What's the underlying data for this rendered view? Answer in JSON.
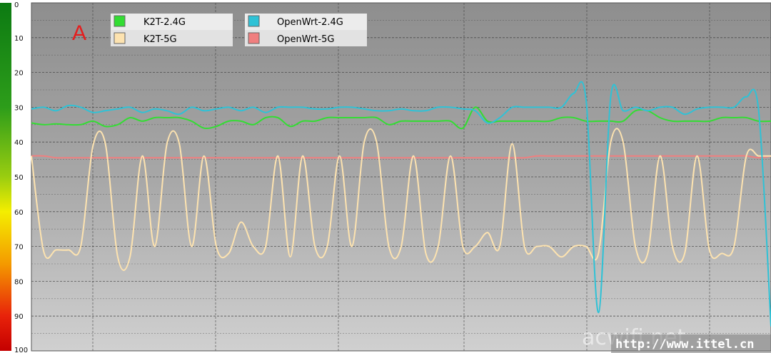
{
  "panel_label": "A",
  "watermark": "acwifi.net",
  "source_url": "http://www.ittel.cn",
  "colors": {
    "K2T-2.4G": "#33dd33",
    "K2T-5G": "#fde3b0",
    "OpenWrt-2.4G": "#2fc2d6",
    "OpenWrt-5G": "#f07f7f",
    "panel_label": "#e41e1e"
  },
  "chart_data": {
    "type": "line",
    "title": "",
    "xlabel": "",
    "ylabel": "",
    "ylim": [
      0,
      100
    ],
    "y_axis_inverted": true,
    "y_ticks": [
      "0",
      "10",
      "20",
      "30",
      "40",
      "50",
      "60",
      "70",
      "80",
      "90",
      "100"
    ],
    "grid": true,
    "legend_position": "top-left",
    "background": "gray gradient, dark at top to light at bottom",
    "color_scale": "vertical bar at left: green at 0, yellow at 60, red at 100",
    "x": [
      0,
      4,
      8,
      12,
      16,
      20,
      24,
      28,
      32,
      36,
      40,
      44,
      48,
      52,
      56,
      60,
      64,
      68,
      72,
      76,
      80,
      84,
      88,
      92,
      96,
      100,
      104,
      108,
      112,
      116,
      120,
      124,
      128,
      132,
      136,
      140,
      144,
      148,
      152,
      156,
      160,
      164,
      168,
      172,
      176,
      180,
      184,
      188,
      192,
      196,
      200,
      204,
      208,
      212,
      216,
      220,
      224,
      228,
      232,
      236,
      240
    ],
    "series": [
      {
        "name": "K2T-2.4G",
        "values": [
          34.5,
          35,
          34.8,
          35,
          35,
          34,
          35.5,
          35,
          33,
          34,
          33,
          33,
          33,
          34,
          36,
          35.5,
          34,
          34,
          35,
          33,
          33,
          35.5,
          34,
          34,
          33,
          33,
          33,
          33,
          33,
          35,
          34,
          34,
          34,
          34,
          34,
          36,
          30,
          34,
          34,
          34,
          34,
          34,
          34,
          33,
          33,
          34,
          34,
          34,
          34,
          31,
          31,
          33,
          34,
          34,
          34,
          34,
          33,
          33,
          33,
          34,
          34
        ]
      },
      {
        "name": "K2T-5G",
        "values": [
          44,
          71.5,
          71,
          71,
          70,
          41,
          40.5,
          73,
          73,
          44,
          70,
          40.5,
          40.5,
          70,
          44,
          70,
          72,
          63,
          70,
          70,
          44,
          73,
          44,
          70,
          70,
          44,
          70,
          40,
          40,
          70,
          70,
          44,
          72,
          70,
          44,
          70,
          70,
          66,
          70,
          40.5,
          70,
          70,
          70,
          73,
          70,
          70,
          72,
          40,
          40,
          70,
          72,
          44,
          70,
          72,
          44,
          71,
          72,
          70,
          44,
          44,
          44
        ]
      },
      {
        "name": "OpenWrt-2.4G",
        "values": [
          30.5,
          30,
          31,
          29.5,
          30,
          31.5,
          31,
          30.5,
          30,
          31.5,
          30.5,
          31,
          32,
          30,
          31,
          30.5,
          30,
          31,
          30,
          31.5,
          30,
          30,
          30,
          30.5,
          30.5,
          30,
          30,
          30.5,
          31,
          31,
          30.5,
          31,
          31,
          30,
          30,
          30.5,
          31,
          34.5,
          33,
          30,
          30,
          30,
          30,
          30,
          26,
          28,
          89,
          27,
          31,
          30,
          31,
          30,
          30,
          32,
          30.5,
          30,
          30,
          30,
          27,
          31,
          93
        ]
      },
      {
        "name": "OpenWrt-5G",
        "values": [
          44,
          44,
          44.5,
          44.5,
          44.5,
          44.5,
          44.5,
          44.5,
          44.5,
          44.5,
          44.5,
          44.5,
          44.5,
          44.5,
          44.5,
          44.5,
          44.5,
          44.5,
          44.5,
          44.5,
          44.5,
          44.5,
          44.5,
          44.5,
          44.5,
          44.5,
          44.5,
          44.5,
          44.5,
          44.5,
          44.5,
          44.5,
          44.5,
          44.5,
          44.5,
          44.5,
          44.5,
          44.5,
          44.5,
          44.5,
          44.5,
          44,
          44,
          44,
          44,
          44,
          44,
          44,
          44,
          44,
          44,
          44,
          44,
          44,
          44,
          44,
          44,
          44,
          44,
          44.5,
          44
        ]
      }
    ]
  }
}
